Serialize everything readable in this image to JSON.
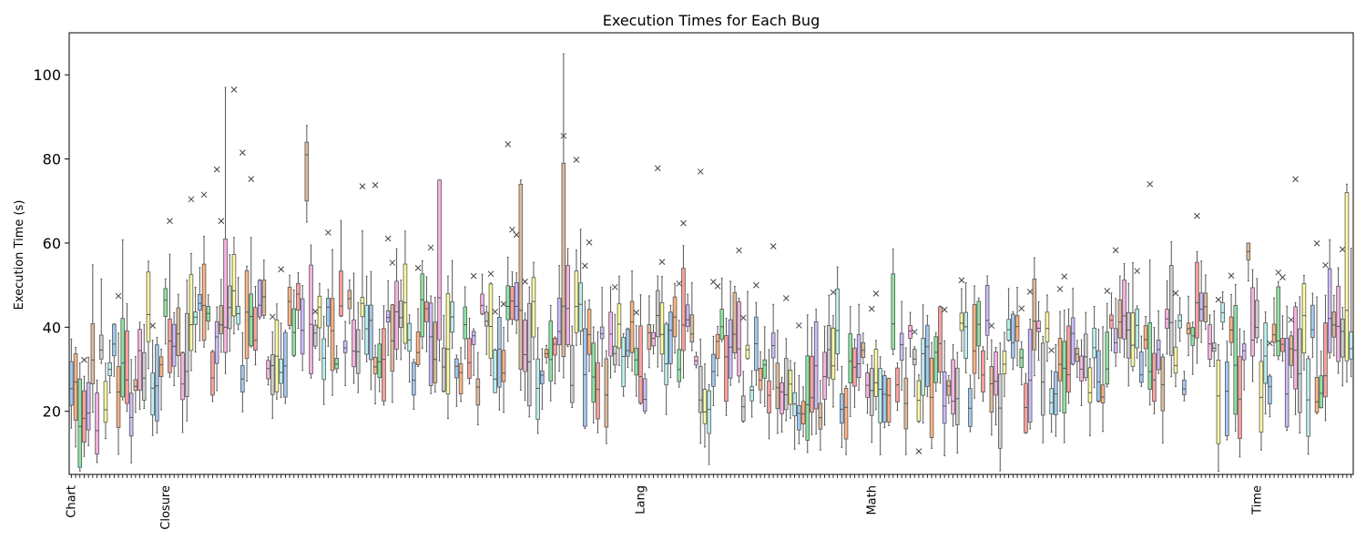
{
  "chart_data": {
    "type": "box",
    "title": "Execution Times for Each Bug",
    "xlabel": "",
    "ylabel": "Execution Time (s)",
    "ylim": [
      5,
      110
    ],
    "yticks": [
      20,
      40,
      60,
      80,
      100
    ],
    "n_boxes": 300,
    "group_labels": [
      {
        "label": "Chart",
        "index": 0
      },
      {
        "label": "Closure",
        "index": 22
      },
      {
        "label": "Lang",
        "index": 133
      },
      {
        "label": "Math",
        "index": 187
      },
      {
        "label": "Time",
        "index": 277
      }
    ],
    "palette": [
      "#a1c9f4",
      "#ffb482",
      "#8de5a1",
      "#ff9f9b",
      "#d0bbff",
      "#debb9b",
      "#fab0e4",
      "#cfcfcf",
      "#fffea3",
      "#b9f2f0"
    ],
    "outlier_marker": "x",
    "grid": false,
    "legend": "none",
    "profile": {
      "baseline": [
        {
          "index": 0,
          "median": 22
        },
        {
          "index": 10,
          "median": 26
        },
        {
          "index": 22,
          "median": 36
        },
        {
          "index": 50,
          "median": 40
        },
        {
          "index": 80,
          "median": 37
        },
        {
          "index": 110,
          "median": 36
        },
        {
          "index": 133,
          "median": 34
        },
        {
          "index": 160,
          "median": 28
        },
        {
          "index": 187,
          "median": 30
        },
        {
          "index": 230,
          "median": 32
        },
        {
          "index": 260,
          "median": 36
        },
        {
          "index": 277,
          "median": 30
        },
        {
          "index": 299,
          "median": 35
        }
      ],
      "notable_boxes": [
        {
          "index": 36,
          "q1": 34,
          "median": 40,
          "q3": 61,
          "whisker_high": 97
        },
        {
          "index": 55,
          "q1": 70,
          "median": 81,
          "q3": 84,
          "whisker_high": 88
        },
        {
          "index": 86,
          "q1": 37,
          "median": 47,
          "q3": 75,
          "whisker_high": 75
        },
        {
          "index": 105,
          "q1": 30,
          "median": 44,
          "q3": 74,
          "whisker_high": 75
        },
        {
          "index": 115,
          "q1": 33,
          "median": 45,
          "q3": 79,
          "whisker_high": 105
        },
        {
          "index": 275,
          "q1": 56,
          "median": 58,
          "q3": 60,
          "whisker_high": 60
        },
        {
          "index": 298,
          "q1": 32,
          "median": 44,
          "q3": 72,
          "whisker_high": 74
        }
      ],
      "notable_outliers": [
        {
          "index": 38,
          "value": 96.5
        },
        {
          "index": 40,
          "value": 81.5
        },
        {
          "index": 34,
          "value": 77.5
        },
        {
          "index": 31,
          "value": 71.5
        },
        {
          "index": 68,
          "value": 73.5
        },
        {
          "index": 71,
          "value": 73.8
        },
        {
          "index": 102,
          "value": 83.5
        },
        {
          "index": 115,
          "value": 85.5
        },
        {
          "index": 118,
          "value": 79.8
        },
        {
          "index": 137,
          "value": 77.8
        },
        {
          "index": 147,
          "value": 77
        },
        {
          "index": 198,
          "value": 10.5
        },
        {
          "index": 252,
          "value": 74
        },
        {
          "index": 286,
          "value": 75.2
        }
      ]
    }
  }
}
